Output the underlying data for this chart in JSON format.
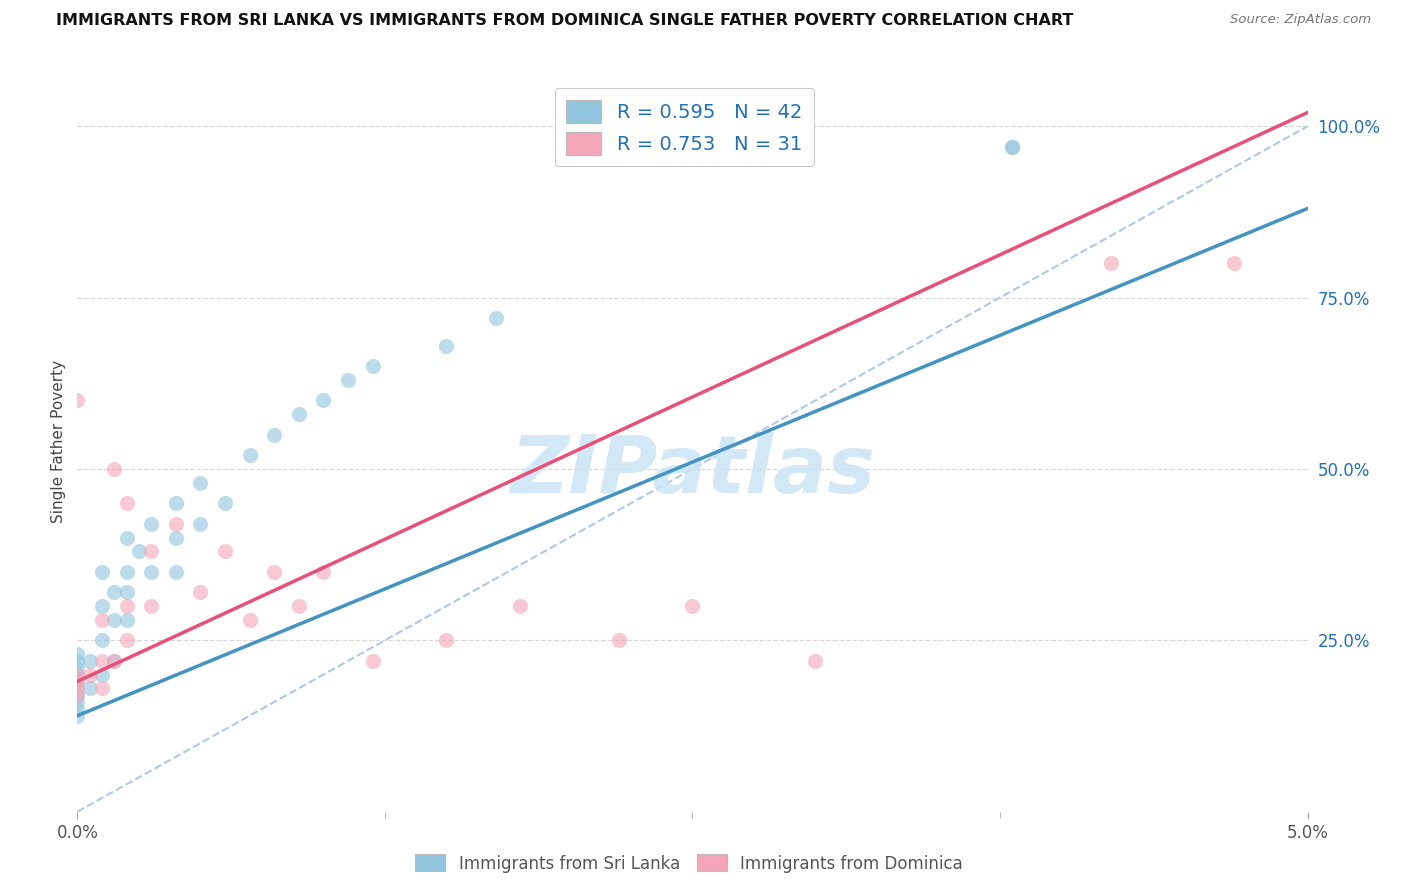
{
  "title": "IMMIGRANTS FROM SRI LANKA VS IMMIGRANTS FROM DOMINICA SINGLE FATHER POVERTY CORRELATION CHART",
  "source": "Source: ZipAtlas.com",
  "ylabel": "Single Father Poverty",
  "right_yticks": [
    "100.0%",
    "75.0%",
    "50.0%",
    "25.0%"
  ],
  "right_ytick_vals": [
    1.0,
    0.75,
    0.5,
    0.25
  ],
  "xlim": [
    0.0,
    0.05
  ],
  "ylim": [
    0.0,
    1.08
  ],
  "watermark": "ZIPatlas",
  "blue_color": "#92c5de",
  "pink_color": "#f4a6b8",
  "blue_line_color": "#4393c3",
  "pink_line_color": "#e8507a",
  "diag_line_color": "#b0c9e0",
  "legend_label1": "Immigrants from Sri Lanka",
  "legend_label2": "Immigrants from Dominica",
  "sri_lanka_x": [
    0.0,
    0.0,
    0.0,
    0.0,
    0.0,
    0.0,
    0.0,
    0.0,
    0.0,
    0.0,
    0.0005,
    0.0005,
    0.001,
    0.001,
    0.001,
    0.001,
    0.0015,
    0.0015,
    0.0015,
    0.002,
    0.002,
    0.002,
    0.002,
    0.0025,
    0.003,
    0.003,
    0.004,
    0.004,
    0.004,
    0.005,
    0.005,
    0.006,
    0.007,
    0.008,
    0.009,
    0.01,
    0.011,
    0.012,
    0.015,
    0.017,
    0.038,
    0.038
  ],
  "sri_lanka_y": [
    0.14,
    0.15,
    0.16,
    0.17,
    0.18,
    0.19,
    0.2,
    0.21,
    0.22,
    0.23,
    0.18,
    0.22,
    0.2,
    0.25,
    0.3,
    0.35,
    0.22,
    0.28,
    0.32,
    0.28,
    0.32,
    0.35,
    0.4,
    0.38,
    0.35,
    0.42,
    0.35,
    0.4,
    0.45,
    0.42,
    0.48,
    0.45,
    0.52,
    0.55,
    0.58,
    0.6,
    0.63,
    0.65,
    0.68,
    0.72,
    0.97,
    0.97
  ],
  "dominica_x": [
    0.0,
    0.0,
    0.0,
    0.0,
    0.0,
    0.0005,
    0.001,
    0.001,
    0.001,
    0.0015,
    0.0015,
    0.002,
    0.002,
    0.002,
    0.003,
    0.003,
    0.004,
    0.005,
    0.006,
    0.007,
    0.008,
    0.009,
    0.01,
    0.012,
    0.015,
    0.018,
    0.022,
    0.025,
    0.03,
    0.042,
    0.047
  ],
  "dominica_y": [
    0.17,
    0.18,
    0.19,
    0.2,
    0.6,
    0.2,
    0.18,
    0.22,
    0.28,
    0.22,
    0.5,
    0.25,
    0.3,
    0.45,
    0.3,
    0.38,
    0.42,
    0.32,
    0.38,
    0.28,
    0.35,
    0.3,
    0.35,
    0.22,
    0.25,
    0.3,
    0.25,
    0.3,
    0.22,
    0.8,
    0.8
  ],
  "sri_lanka_line_x": [
    0.0,
    0.05
  ],
  "sri_lanka_line_y": [
    0.14,
    0.88
  ],
  "dominica_line_x": [
    0.0,
    0.05
  ],
  "dominica_line_y": [
    0.19,
    1.02
  ],
  "diag_line_x": [
    0.0,
    0.05
  ],
  "diag_line_y": [
    0.0,
    1.0
  ]
}
